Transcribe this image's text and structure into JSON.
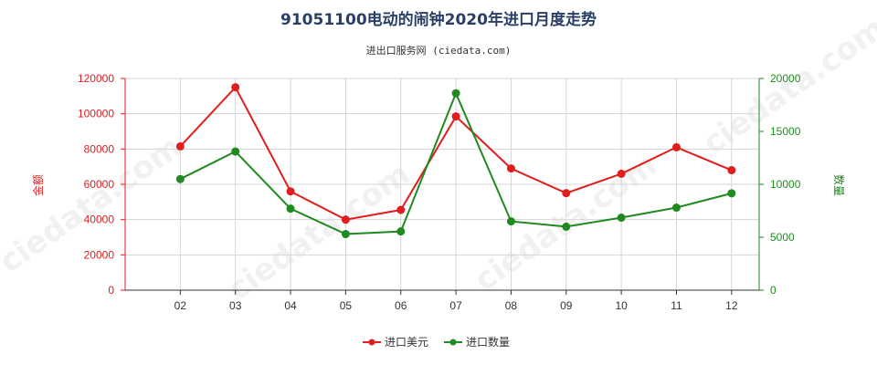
{
  "chart_data": {
    "type": "line",
    "title": "91051100电动的闹钟2020年进口月度走势",
    "subtitle": "进出口服务网 (ciedata.com)",
    "categories": [
      "02",
      "03",
      "04",
      "05",
      "06",
      "07",
      "08",
      "09",
      "10",
      "11",
      "12"
    ],
    "y_left": {
      "label": "金额",
      "ylim": [
        0,
        120000
      ],
      "ticks": [
        0,
        20000,
        40000,
        60000,
        80000,
        100000,
        120000
      ],
      "color": "#e01e1e"
    },
    "y_right": {
      "label": "数量",
      "ylim": [
        0,
        20000
      ],
      "ticks": [
        0,
        5000,
        10000,
        15000,
        20000
      ],
      "color": "#1f8a1f"
    },
    "grid": true,
    "legend_position": "bottom-center",
    "series": [
      {
        "name": "进口美元",
        "axis": "left",
        "color": "#e01e1e",
        "values": [
          81500,
          115000,
          56000,
          40000,
          45500,
          98500,
          69000,
          55000,
          66000,
          81000,
          68000
        ]
      },
      {
        "name": "进口数量",
        "axis": "right",
        "color": "#1f8a1f",
        "values": [
          10500,
          13100,
          7700,
          5300,
          5550,
          18600,
          6500,
          6000,
          6850,
          7800,
          9150
        ]
      }
    ]
  }
}
